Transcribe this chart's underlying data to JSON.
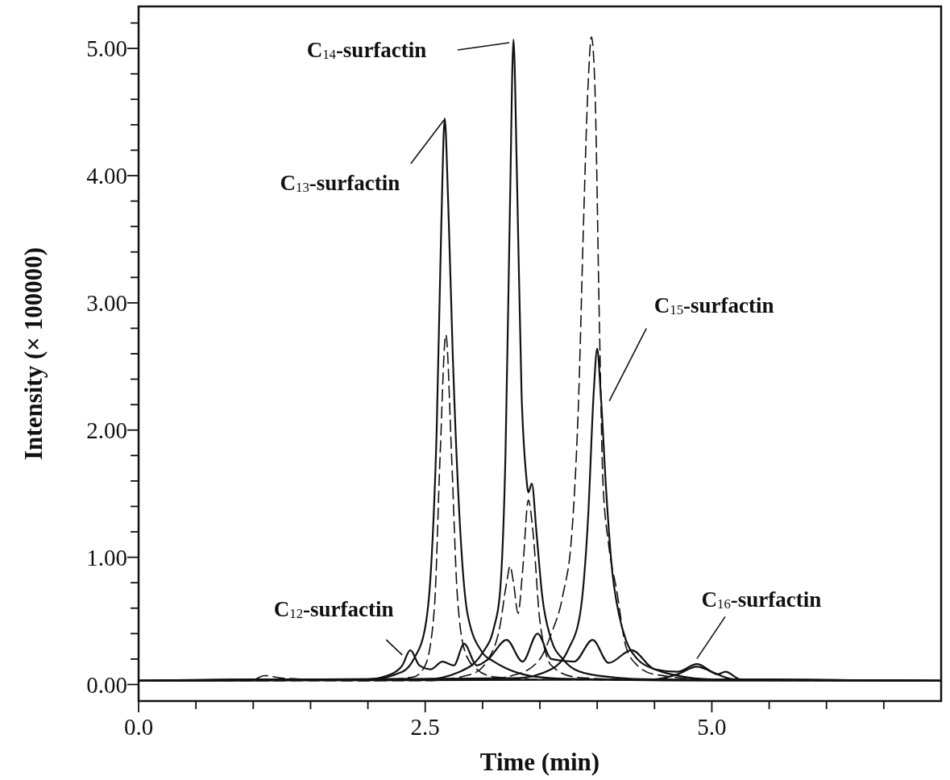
{
  "chart_data": {
    "type": "line",
    "xlabel": "Time (min)",
    "ylabel": "Intensity (× 100000)",
    "xlim": [
      0,
      7.0
    ],
    "ylim": [
      -0.13,
      5.33
    ],
    "xticks": [
      {
        "value": 0,
        "label": "0.0"
      },
      {
        "value": 0.5,
        "label": null
      },
      {
        "value": 1,
        "label": null
      },
      {
        "value": 1.5,
        "label": null
      },
      {
        "value": 2,
        "label": null
      },
      {
        "value": 2.5,
        "label": "2.5"
      },
      {
        "value": 3,
        "label": null
      },
      {
        "value": 3.5,
        "label": null
      },
      {
        "value": 4,
        "label": null
      },
      {
        "value": 4.5,
        "label": null
      },
      {
        "value": 5,
        "label": "5.0"
      },
      {
        "value": 5.5,
        "label": null
      },
      {
        "value": 6,
        "label": null
      },
      {
        "value": 6.5,
        "label": null
      }
    ],
    "yticks": [
      {
        "value": 0,
        "label": "0.00"
      },
      {
        "value": 0.2,
        "label": null
      },
      {
        "value": 0.4,
        "label": null
      },
      {
        "value": 0.6,
        "label": null
      },
      {
        "value": 0.8,
        "label": null
      },
      {
        "value": 1,
        "label": "1.00"
      },
      {
        "value": 1.2,
        "label": null
      },
      {
        "value": 1.4,
        "label": null
      },
      {
        "value": 1.6,
        "label": null
      },
      {
        "value": 1.8,
        "label": null
      },
      {
        "value": 2,
        "label": "2.00"
      },
      {
        "value": 2.2,
        "label": null
      },
      {
        "value": 2.4,
        "label": null
      },
      {
        "value": 2.6,
        "label": null
      },
      {
        "value": 2.8,
        "label": null
      },
      {
        "value": 3,
        "label": "3.00"
      },
      {
        "value": 3.2,
        "label": null
      },
      {
        "value": 3.4,
        "label": null
      },
      {
        "value": 3.6,
        "label": null
      },
      {
        "value": 3.8,
        "label": null
      },
      {
        "value": 4,
        "label": "4.00"
      },
      {
        "value": 4.2,
        "label": null
      },
      {
        "value": 4.4,
        "label": null
      },
      {
        "value": 4.6,
        "label": null
      },
      {
        "value": 4.8,
        "label": null
      },
      {
        "value": 5,
        "label": "5.00"
      },
      {
        "value": 5.2,
        "label": null
      }
    ],
    "grid": false,
    "series": [
      {
        "color": "#111111",
        "line_style": "solid",
        "x": [
          0,
          1.0,
          2.0,
          2.3,
          2.4,
          2.5,
          2.55,
          2.6,
          2.64,
          2.67,
          2.7,
          2.74,
          2.8,
          2.87,
          3.0,
          3.1,
          3.2,
          3.4,
          3.6,
          4.0,
          5.0,
          6.0,
          7.0
        ],
        "values": [
          0.03,
          0.04,
          0.04,
          0.1,
          0.2,
          0.45,
          0.9,
          2.0,
          3.6,
          4.45,
          3.8,
          2.6,
          1.3,
          0.55,
          0.25,
          0.18,
          0.13,
          0.07,
          0.05,
          0.04,
          0.03,
          0.03,
          0.03
        ]
      },
      {
        "color": "#111111",
        "line_style": "dashed",
        "x": [
          0,
          1.0,
          1.1,
          1.25,
          2.0,
          2.4,
          2.5,
          2.58,
          2.63,
          2.68,
          2.73,
          2.78,
          2.85,
          2.95,
          3.1,
          3.5,
          7.0
        ],
        "values": [
          0.03,
          0.04,
          0.07,
          0.05,
          0.03,
          0.06,
          0.15,
          0.6,
          1.8,
          2.75,
          1.8,
          0.7,
          0.25,
          0.12,
          0.06,
          0.04,
          0.03
        ]
      },
      {
        "color": "#111111",
        "line_style": "solid",
        "x": [
          0,
          2.5,
          2.8,
          3.0,
          3.1,
          3.15,
          3.2,
          3.24,
          3.27,
          3.3,
          3.34,
          3.38,
          3.4,
          3.43,
          3.47,
          3.52,
          3.6,
          3.7,
          3.8,
          4.0,
          4.5,
          7.0
        ],
        "values": [
          0.03,
          0.04,
          0.1,
          0.25,
          0.45,
          0.7,
          1.8,
          3.8,
          5.07,
          4.0,
          2.3,
          1.65,
          1.51,
          1.58,
          1.2,
          0.7,
          0.35,
          0.2,
          0.12,
          0.07,
          0.04,
          0.03
        ]
      },
      {
        "color": "#111111",
        "line_style": "dashed",
        "x": [
          0,
          2.5,
          2.9,
          3.05,
          3.15,
          3.21,
          3.24,
          3.27,
          3.31,
          3.35,
          3.4,
          3.44,
          3.5,
          3.6,
          3.8,
          4.2,
          7.0
        ],
        "values": [
          0.03,
          0.03,
          0.08,
          0.2,
          0.45,
          0.8,
          0.93,
          0.8,
          0.56,
          0.9,
          1.45,
          1.2,
          0.5,
          0.15,
          0.06,
          0.04,
          0.03
        ]
      },
      {
        "color": "#111111",
        "line_style": "dashed",
        "x": [
          0,
          3.0,
          3.3,
          3.5,
          3.6,
          3.7,
          3.78,
          3.84,
          3.88,
          3.92,
          3.95,
          3.98,
          4.02,
          4.05,
          4.1,
          4.17,
          4.25,
          4.35,
          4.5,
          5.0,
          7.0
        ],
        "values": [
          0.03,
          0.04,
          0.08,
          0.2,
          0.4,
          0.7,
          1.2,
          2.3,
          3.6,
          4.7,
          5.09,
          4.7,
          2.8,
          1.6,
          1.1,
          0.74,
          0.3,
          0.15,
          0.08,
          0.04,
          0.03
        ]
      },
      {
        "color": "#111111",
        "line_style": "solid",
        "x": [
          0,
          3.3,
          3.6,
          3.75,
          3.85,
          3.92,
          3.97,
          4.0,
          4.03,
          4.08,
          4.13,
          4.19,
          4.25,
          4.35,
          4.5,
          4.7,
          5.0,
          7.0
        ],
        "values": [
          0.03,
          0.05,
          0.12,
          0.28,
          0.55,
          1.3,
          2.3,
          2.64,
          2.3,
          1.5,
          0.9,
          0.55,
          0.35,
          0.2,
          0.12,
          0.07,
          0.04,
          0.03
        ]
      },
      {
        "color": "#111111",
        "line_style": "solid",
        "x": [
          0,
          2.0,
          2.2,
          2.3,
          2.37,
          2.45,
          2.55,
          2.65,
          2.75,
          2.84,
          2.95,
          3.05,
          3.21,
          3.35,
          3.48,
          3.6,
          3.8,
          3.96,
          4.1,
          4.3,
          4.5,
          4.7,
          4.87,
          5.0,
          5.2,
          7.0
        ],
        "values": [
          0.03,
          0.04,
          0.08,
          0.15,
          0.27,
          0.15,
          0.12,
          0.18,
          0.15,
          0.32,
          0.15,
          0.2,
          0.35,
          0.18,
          0.4,
          0.2,
          0.18,
          0.35,
          0.17,
          0.27,
          0.12,
          0.1,
          0.16,
          0.1,
          0.04,
          0.03
        ]
      },
      {
        "color": "#111111",
        "line_style": "solid",
        "x": [
          0,
          4.5,
          4.7,
          4.87,
          4.95,
          5.05,
          5.12,
          5.25,
          7.0
        ],
        "values": [
          0.03,
          0.04,
          0.08,
          0.14,
          0.12,
          0.08,
          0.1,
          0.04,
          0.03
        ]
      }
    ],
    "annotations": [
      "C$_{14}$-surfactin",
      {
        "text": "C$_{13}$-surfactin",
        "x": 2.67,
        "y": 4.45
      },
      {
        "text": "C$_{15}$-surfactin",
        "x": 4.0,
        "y": 2.64
      },
      {
        "text": "C$_{12}$-surfactin",
        "x": 2.37,
        "y": 0.27
      },
      {
        "text": "C$_{16}$-surfactin",
        "x": 4.87,
        "y": 0.14
      }
    ]
  }
}
